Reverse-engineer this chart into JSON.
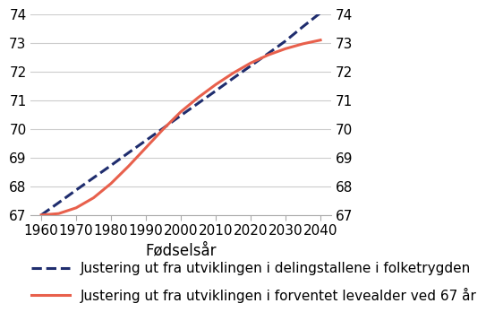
{
  "title": "",
  "xlabel": "Fødselsår",
  "xlim": [
    1957,
    2043
  ],
  "ylim": [
    67,
    74
  ],
  "yticks": [
    67,
    68,
    69,
    70,
    71,
    72,
    73,
    74
  ],
  "xticks": [
    1960,
    1970,
    1980,
    1990,
    2000,
    2010,
    2020,
    2030,
    2040
  ],
  "background_color": "#ffffff",
  "dashed_line": {
    "x": [
      1960,
      1965,
      1970,
      1975,
      1980,
      1985,
      1990,
      1995,
      2000,
      2005,
      2010,
      2015,
      2020,
      2025,
      2030,
      2035,
      2040
    ],
    "y": [
      67.0,
      67.43,
      67.87,
      68.3,
      68.73,
      69.17,
      69.6,
      70.03,
      70.47,
      70.9,
      71.33,
      71.77,
      72.2,
      72.63,
      73.07,
      73.57,
      74.05
    ],
    "color": "#1f2d6e",
    "linewidth": 2.2,
    "linestyle": "--",
    "label": "Justering ut fra utviklingen i delingstallene i folketrygden"
  },
  "solid_line": {
    "x": [
      1960,
      1965,
      1970,
      1975,
      1980,
      1985,
      1990,
      1995,
      2000,
      2005,
      2010,
      2015,
      2020,
      2025,
      2030,
      2035,
      2040
    ],
    "y": [
      67.0,
      67.05,
      67.25,
      67.6,
      68.1,
      68.7,
      69.35,
      70.0,
      70.6,
      71.1,
      71.55,
      71.95,
      72.3,
      72.58,
      72.8,
      72.97,
      73.1
    ],
    "color": "#e8604c",
    "linewidth": 2.2,
    "linestyle": "-",
    "label": "Justering ut fra utviklingen i forventet levealder ved 67 år"
  },
  "grid_color": "#cccccc",
  "tick_fontsize": 11,
  "legend_fontsize": 11
}
